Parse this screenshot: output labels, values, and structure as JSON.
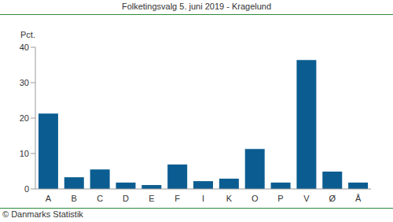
{
  "chart_data": {
    "type": "bar",
    "title": "Folketingsvalg 5. juni 2019 - Kragelund",
    "ylabel": "Pct.",
    "source": "© Danmarks Statistik",
    "categories": [
      "A",
      "B",
      "C",
      "D",
      "E",
      "F",
      "I",
      "K",
      "O",
      "P",
      "V",
      "Ø",
      "Å"
    ],
    "values": [
      21.3,
      3.3,
      5.5,
      1.8,
      1.1,
      6.9,
      2.2,
      2.9,
      11.3,
      1.8,
      36.4,
      4.9,
      1.8
    ],
    "color": "#0b5d91",
    "ylim": [
      0,
      40
    ],
    "yticks": [
      0,
      10,
      20,
      30,
      40
    ],
    "grid": false
  }
}
